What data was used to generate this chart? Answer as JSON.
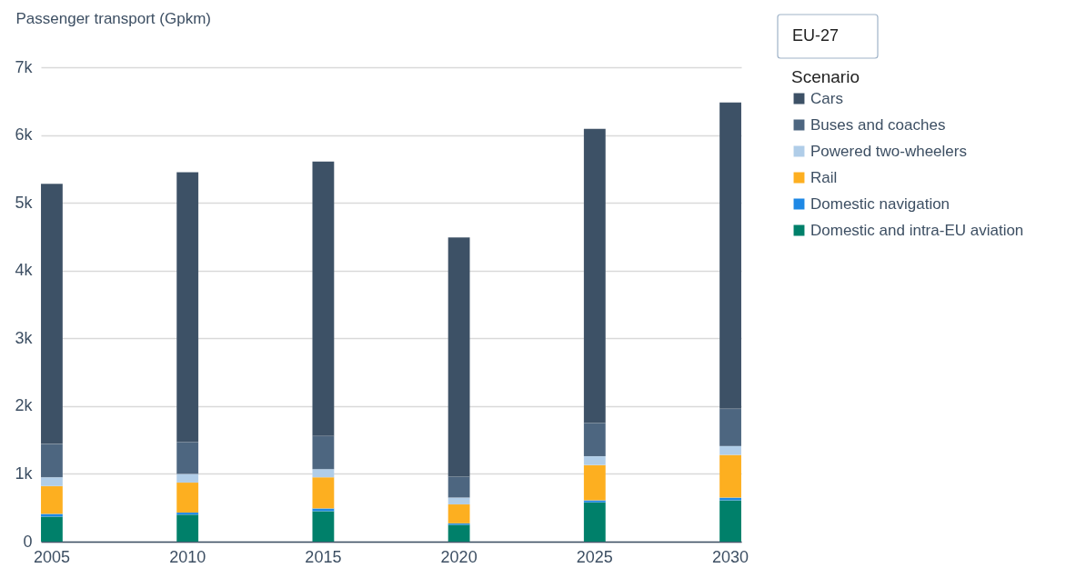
{
  "chart_data": {
    "type": "bar",
    "stacked": true,
    "ylabel": "Passenger transport (Gpkm)",
    "legend_title": "Scenario",
    "legend": "top right",
    "annotations": [
      "EU-27"
    ],
    "categories": [
      "2005",
      "2010",
      "2015",
      "2020",
      "2025",
      "2030"
    ],
    "series": [
      {
        "name": "Domestic and intra-EU aviation",
        "color": "#00806a",
        "values": [
          370,
          400,
          450,
          250,
          580,
          610
        ]
      },
      {
        "name": "Domestic navigation",
        "color": "#1e88e5",
        "values": [
          40,
          30,
          40,
          20,
          30,
          40
        ]
      },
      {
        "name": "Rail",
        "color": "#fdaf20",
        "values": [
          410,
          440,
          460,
          280,
          520,
          630
        ]
      },
      {
        "name": "Powered two-wheelers",
        "color": "#b0cde8",
        "values": [
          130,
          130,
          120,
          100,
          130,
          130
        ]
      },
      {
        "name": "Buses and coaches",
        "color": "#4d6680",
        "values": [
          490,
          470,
          490,
          310,
          490,
          550
        ]
      },
      {
        "name": "Cars",
        "color": "#3d5166",
        "values": [
          3840,
          3980,
          4050,
          3530,
          4340,
          4520
        ]
      }
    ],
    "ylim": [
      0,
      7000
    ],
    "yticks": [
      0,
      {
        "value": 1000,
        "label": "1k"
      },
      {
        "value": 2000,
        "label": "2k"
      },
      {
        "value": 3000,
        "label": "3k"
      },
      {
        "value": 4000,
        "label": "4k"
      },
      {
        "value": 5000,
        "label": "5k"
      },
      {
        "value": 6000,
        "label": "6k"
      },
      {
        "value": 7000,
        "label": "7k"
      }
    ],
    "grid": "y"
  }
}
